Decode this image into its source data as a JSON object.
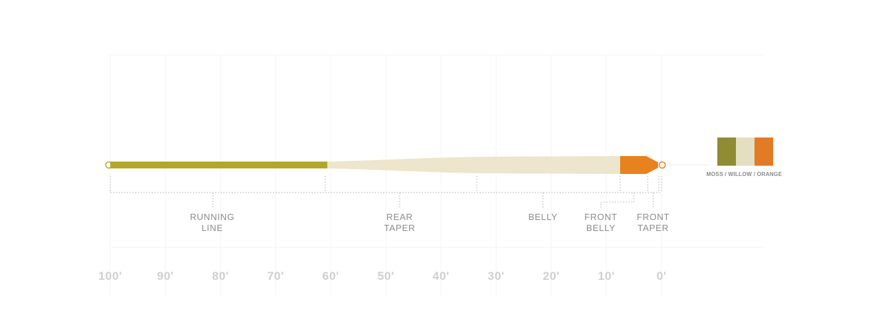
{
  "diagram": {
    "sections": [
      {
        "line1": "RUNNING",
        "line2": "LINE"
      },
      {
        "line1": "REAR",
        "line2": "TAPER"
      },
      {
        "line1": "BELLY",
        "line2": ""
      },
      {
        "line1": "FRONT",
        "line2": "BELLY"
      },
      {
        "line1": "FRONT",
        "line2": "TAPER"
      }
    ],
    "scale_ticks": [
      "100'",
      "90'",
      "80'",
      "70'",
      "60'",
      "50'",
      "40'",
      "30'",
      "20'",
      "10'",
      "0'"
    ],
    "colors": {
      "running_line": "#b1a72d",
      "body": "#ede5cc",
      "tip": "#e8821f",
      "swatch_moss": "#8f8c33",
      "swatch_willow": "#e5dfc2",
      "swatch_orange": "#e27b25"
    },
    "color_caption": "MOSS / WILLOW / ORANGE"
  }
}
